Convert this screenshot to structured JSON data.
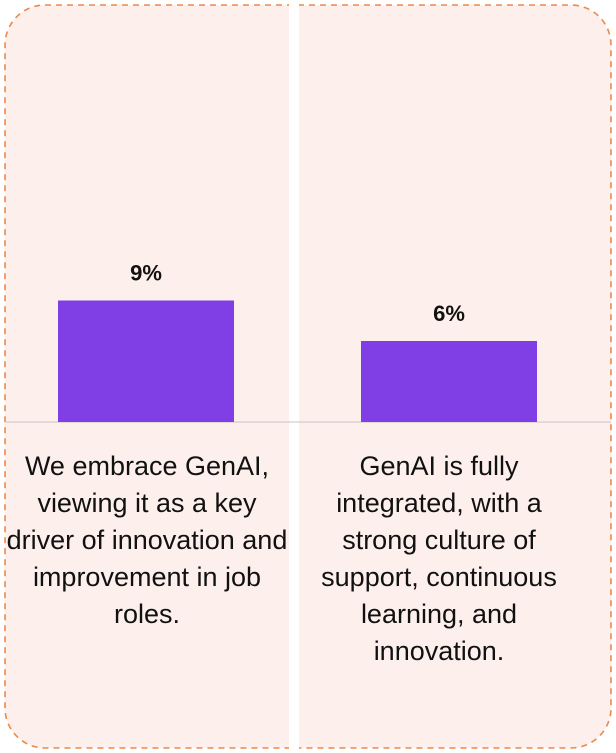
{
  "chart_data": {
    "type": "bar",
    "categories": [
      "We embrace GenAI, viewing it as a key driver of innovation and improvement in job roles.",
      "GenAI is fully integrated, with a strong culture of support, continuous learning, and innovation."
    ],
    "values": [
      9,
      6
    ],
    "value_labels": [
      "9%",
      "6%"
    ],
    "color": "#7f3fe4"
  }
}
